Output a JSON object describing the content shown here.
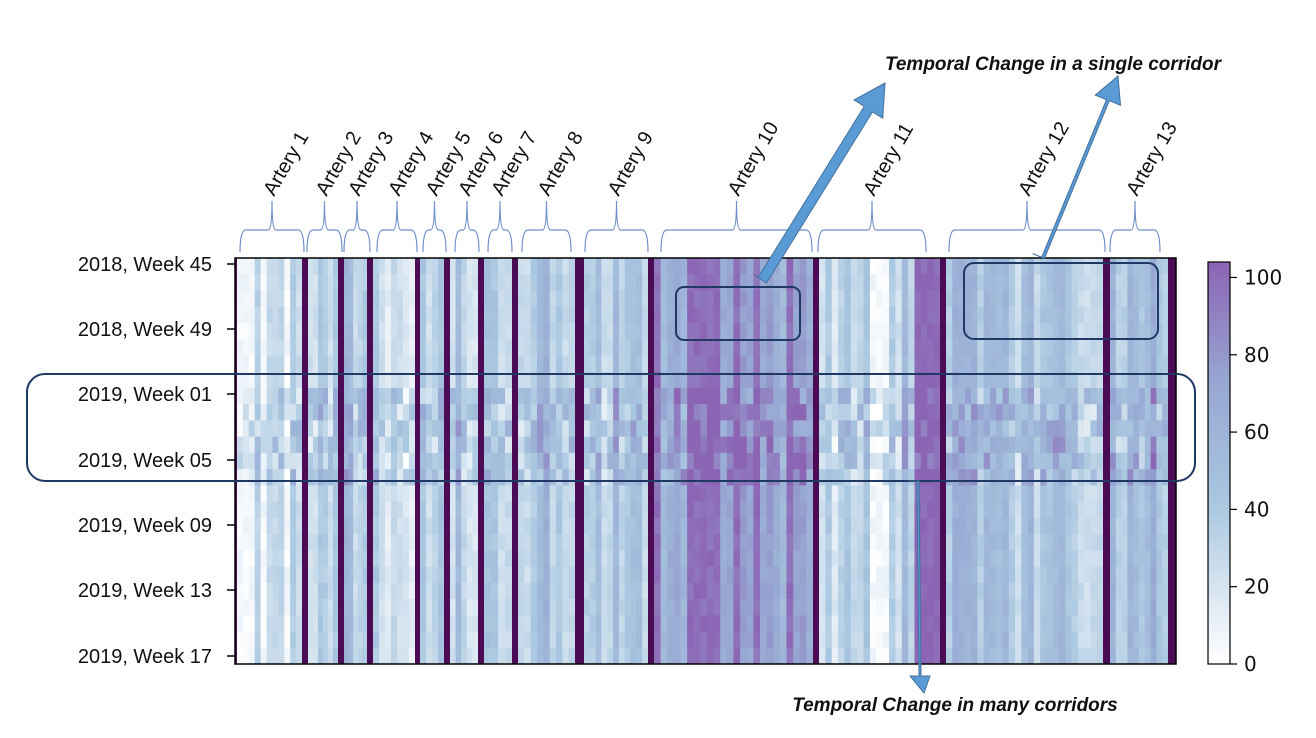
{
  "chart_data": {
    "type": "heatmap",
    "title": "",
    "xlabel": "",
    "ylabel": "",
    "y_ticks": [
      "2018, Week 45",
      "2018, Week 49",
      "2019, Week 01",
      "2019, Week 05",
      "2019, Week 09",
      "2019, Week 13",
      "2019, Week 17"
    ],
    "groups": [
      {
        "label": "Artery 1",
        "columns": 11
      },
      {
        "label": "Artery 2",
        "columns": 6
      },
      {
        "label": "Artery 3",
        "columns": 5
      },
      {
        "label": "Artery 4",
        "columns": 7
      },
      {
        "label": "Artery 5",
        "columns": 4
      },
      {
        "label": "Artery 6",
        "columns": 5
      },
      {
        "label": "Artery 7",
        "columns": 4
      },
      {
        "label": "Artery 8",
        "columns": 9
      },
      {
        "label": "Artery 9",
        "columns": 11
      },
      {
        "label": "Artery 10",
        "columns": 24
      },
      {
        "label": "Artery 11",
        "columns": 19
      },
      {
        "label": "Artery 12",
        "columns": 25
      },
      {
        "label": "Artery 13",
        "columns": 10
      }
    ],
    "rows": 25,
    "colorbar": {
      "ticks": [
        0,
        20,
        40,
        60,
        80,
        100
      ],
      "range": [
        0,
        104
      ],
      "colormap": [
        "#ffffff",
        "#a9c7e0",
        "#8c64b4",
        "#4b0c55"
      ]
    },
    "annotations": [
      {
        "text": "Temporal Change in a single corridor"
      },
      {
        "text": "Temporal Change in many corridors"
      }
    ]
  },
  "colors": {
    "outline": "#1f3864",
    "arrow": "#5b9bd5",
    "arrow_stroke": "#41719c",
    "brace": "#6f8fc9"
  }
}
